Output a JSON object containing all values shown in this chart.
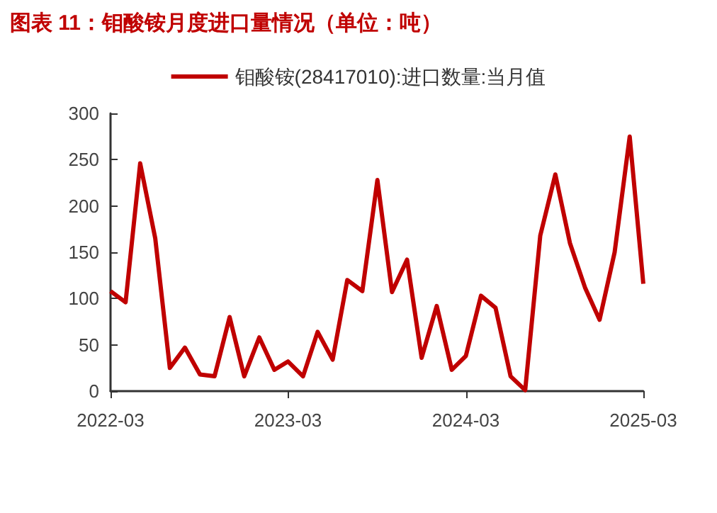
{
  "chart_data": {
    "type": "line",
    "title": "图表 11：钼酸铵月度进口量情况（单位：吨）",
    "x": [
      "2022-03",
      "2022-04",
      "2022-05",
      "2022-06",
      "2022-07",
      "2022-08",
      "2022-09",
      "2022-10",
      "2022-11",
      "2022-12",
      "2023-01",
      "2023-02",
      "2023-03",
      "2023-04",
      "2023-05",
      "2023-06",
      "2023-07",
      "2023-08",
      "2023-09",
      "2023-10",
      "2023-11",
      "2023-12",
      "2024-01",
      "2024-02",
      "2024-03",
      "2024-04",
      "2024-05",
      "2024-06",
      "2024-07",
      "2024-08",
      "2024-09",
      "2024-10",
      "2024-11",
      "2024-12",
      "2025-01",
      "2025-02",
      "2025-03"
    ],
    "series": [
      {
        "name": "钼酸铵(28417010):进口数量:当月值",
        "color": "#c00000",
        "values": [
          108,
          96,
          246,
          165,
          25,
          47,
          18,
          16,
          80,
          16,
          58,
          23,
          32,
          16,
          64,
          34,
          120,
          108,
          228,
          107,
          142,
          36,
          92,
          23,
          38,
          103,
          90,
          16,
          1,
          168,
          234,
          160,
          112,
          77,
          150,
          275,
          116
        ]
      }
    ],
    "xlim": [
      "2022-03",
      "2025-03"
    ],
    "xticks": [
      "2022-03",
      "2023-03",
      "2024-03",
      "2025-03"
    ],
    "ylim": [
      0,
      300
    ],
    "yticks": [
      0,
      50,
      100,
      150,
      200,
      250,
      300
    ],
    "grid": false,
    "legend": "top",
    "marker": "none",
    "line_style": "solid"
  }
}
